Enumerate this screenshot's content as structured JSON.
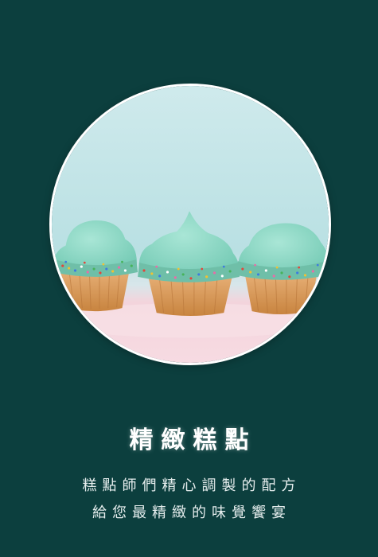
{
  "card": {
    "title": "精緻糕點",
    "description_line1": "糕點師們精心調製的配方",
    "description_line2": "給您最精緻的味覺饗宴"
  },
  "colors": {
    "background": "#0c3f3e",
    "title": "#ffffff",
    "frosting": "#8ed8c8",
    "photo_background": "#bfe3e6",
    "table_surface": "#f6d6de"
  }
}
